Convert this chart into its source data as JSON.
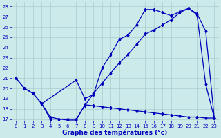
{
  "title": "Graphe des températures (°c)",
  "bg_color": "#cceaea",
  "grid_color": "#aacccc",
  "line_color": "#0000bb",
  "xlim": [
    -0.5,
    23.5
  ],
  "ylim": [
    16.8,
    28.4
  ],
  "yticks": [
    17,
    18,
    19,
    20,
    21,
    22,
    23,
    24,
    25,
    26,
    27,
    28
  ],
  "xticks": [
    0,
    1,
    2,
    3,
    4,
    5,
    6,
    7,
    8,
    9,
    10,
    11,
    12,
    13,
    14,
    15,
    16,
    17,
    18,
    19,
    20,
    21,
    22,
    23
  ],
  "s1_x": [
    0,
    1,
    2,
    3,
    7,
    8,
    9,
    10,
    11,
    12,
    13,
    14,
    15,
    16,
    17,
    18,
    19,
    20,
    21,
    22,
    23
  ],
  "s1_y": [
    21,
    20,
    19.5,
    18.5,
    20.8,
    19.0,
    19.4,
    22.0,
    23.3,
    24.8,
    25.2,
    26.2,
    27.7,
    27.7,
    27.4,
    27.1,
    27.5,
    27.8,
    27.2,
    20.4,
    17.1
  ],
  "s2_x": [
    0,
    1,
    2,
    3,
    4,
    5,
    6,
    7,
    8,
    9,
    10,
    11,
    12,
    13,
    14,
    15,
    16,
    17,
    18,
    19,
    20,
    21,
    22,
    23
  ],
  "s2_y": [
    21,
    20,
    19.5,
    18.5,
    17.0,
    17.0,
    17.0,
    17.0,
    18.3,
    19.5,
    20.5,
    21.5,
    22.5,
    23.3,
    24.3,
    25.3,
    25.7,
    26.2,
    26.7,
    27.4,
    27.8,
    27.3,
    25.6,
    17.1
  ],
  "s3_x": [
    3,
    4,
    5,
    6,
    7,
    8,
    9,
    10,
    11,
    12,
    13,
    14,
    15,
    16,
    17,
    18,
    19,
    20,
    21,
    22,
    23
  ],
  "s3_y": [
    18.5,
    17.2,
    17.0,
    16.9,
    16.9,
    18.4,
    18.3,
    18.2,
    18.1,
    18.0,
    17.9,
    17.8,
    17.7,
    17.6,
    17.5,
    17.4,
    17.3,
    17.2,
    17.2,
    17.1,
    17.1
  ]
}
